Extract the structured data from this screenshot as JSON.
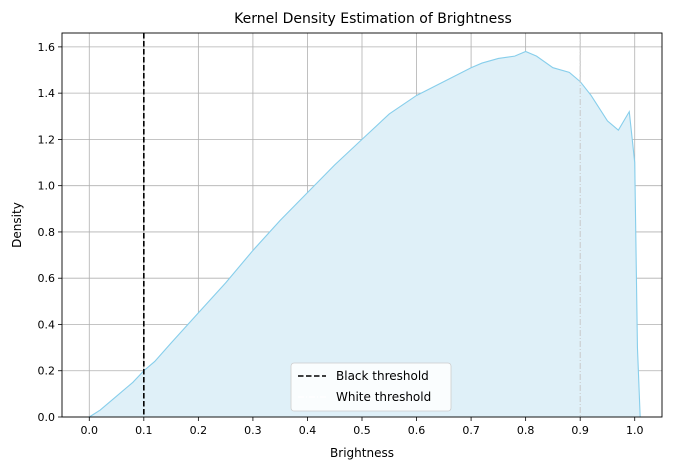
{
  "chart_data": {
    "type": "area",
    "title": "Kernel Density Estimation of Brightness",
    "xlabel": "Brightness",
    "ylabel": "Density",
    "xlim": [
      -0.05,
      1.05
    ],
    "ylim": [
      0,
      1.66
    ],
    "xticks": [
      0.0,
      0.1,
      0.2,
      0.3,
      0.4,
      0.5,
      0.6,
      0.7,
      0.8,
      0.9,
      1.0
    ],
    "xtick_labels": [
      "0.0",
      "0.1",
      "0.2",
      "0.3",
      "0.4",
      "0.5",
      "0.6",
      "0.7",
      "0.8",
      "0.9",
      "1.0"
    ],
    "yticks": [
      0.0,
      0.2,
      0.4,
      0.6,
      0.8,
      1.0,
      1.2,
      1.4,
      1.6
    ],
    "ytick_labels": [
      "0.0",
      "0.2",
      "0.4",
      "0.6",
      "0.8",
      "1.0",
      "1.2",
      "1.4",
      "1.6"
    ],
    "grid": true,
    "series": [
      {
        "line_color": "#87ceeb",
        "fill_color": "#dff0f8",
        "x": [
          0.0,
          0.02,
          0.05,
          0.08,
          0.1,
          0.12,
          0.15,
          0.2,
          0.25,
          0.3,
          0.35,
          0.4,
          0.45,
          0.5,
          0.55,
          0.6,
          0.65,
          0.7,
          0.72,
          0.75,
          0.78,
          0.8,
          0.82,
          0.85,
          0.88,
          0.9,
          0.92,
          0.95,
          0.97,
          0.99,
          1.0,
          1.005,
          1.01
        ],
        "y": [
          0.0,
          0.03,
          0.09,
          0.15,
          0.2,
          0.24,
          0.32,
          0.45,
          0.58,
          0.72,
          0.85,
          0.97,
          1.09,
          1.2,
          1.31,
          1.39,
          1.45,
          1.51,
          1.53,
          1.55,
          1.56,
          1.58,
          1.56,
          1.51,
          1.49,
          1.45,
          1.39,
          1.28,
          1.24,
          1.32,
          1.1,
          0.3,
          0.0
        ]
      }
    ],
    "thresholds": [
      {
        "name": "Black threshold",
        "x": 0.1,
        "color": "#000000",
        "dash": "dashed"
      },
      {
        "name": "White threshold",
        "x": 0.9,
        "color": "#c8c8c8",
        "dash": "dashdot"
      }
    ],
    "legend_position": "lower-center"
  }
}
